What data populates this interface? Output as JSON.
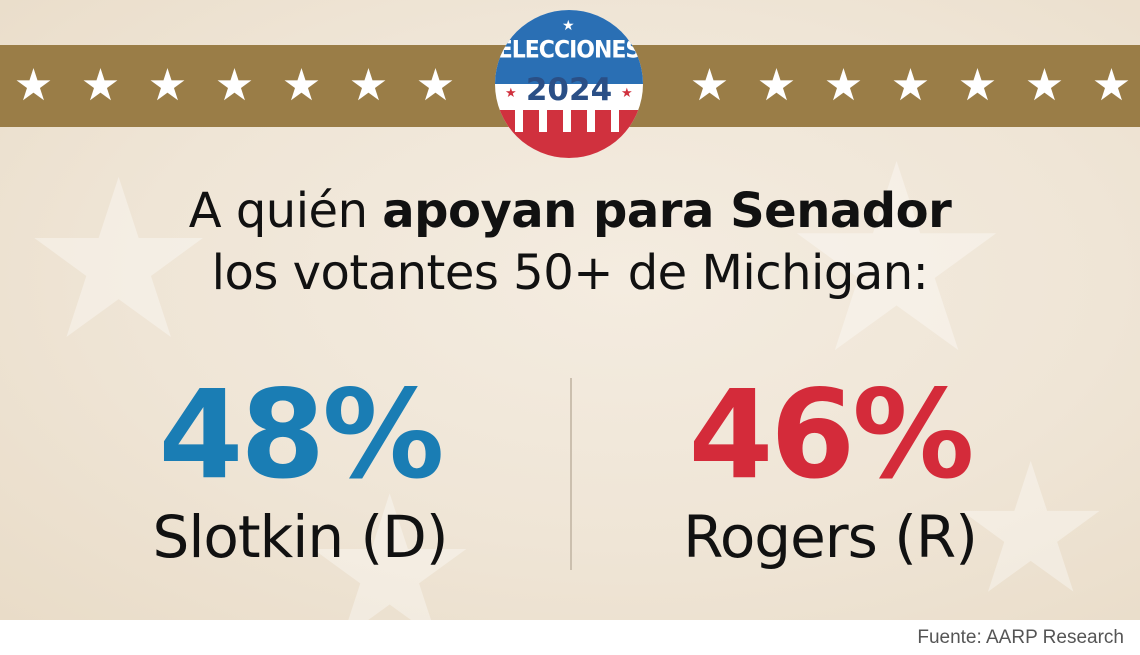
{
  "badge": {
    "word": "ELECCIONES",
    "year": "2024"
  },
  "headline": {
    "line1_regular": "A quién ",
    "line1_bold": "apoyan para Senador",
    "line2": "los votantes 50+ de Michigan:"
  },
  "results": [
    {
      "percent": "48%",
      "candidate": "Slotkin (D)",
      "color": "#1a7db4"
    },
    {
      "percent": "46%",
      "candidate": "Rogers (R)",
      "color": "#d42b3a"
    }
  ],
  "source": "Fuente: AARP Research",
  "colors": {
    "band": "#9a7d47",
    "background": "#efe5d6",
    "democrat": "#1a7db4",
    "republican": "#d42b3a"
  },
  "icons": [
    "star-icon",
    "elecciones-badge"
  ]
}
